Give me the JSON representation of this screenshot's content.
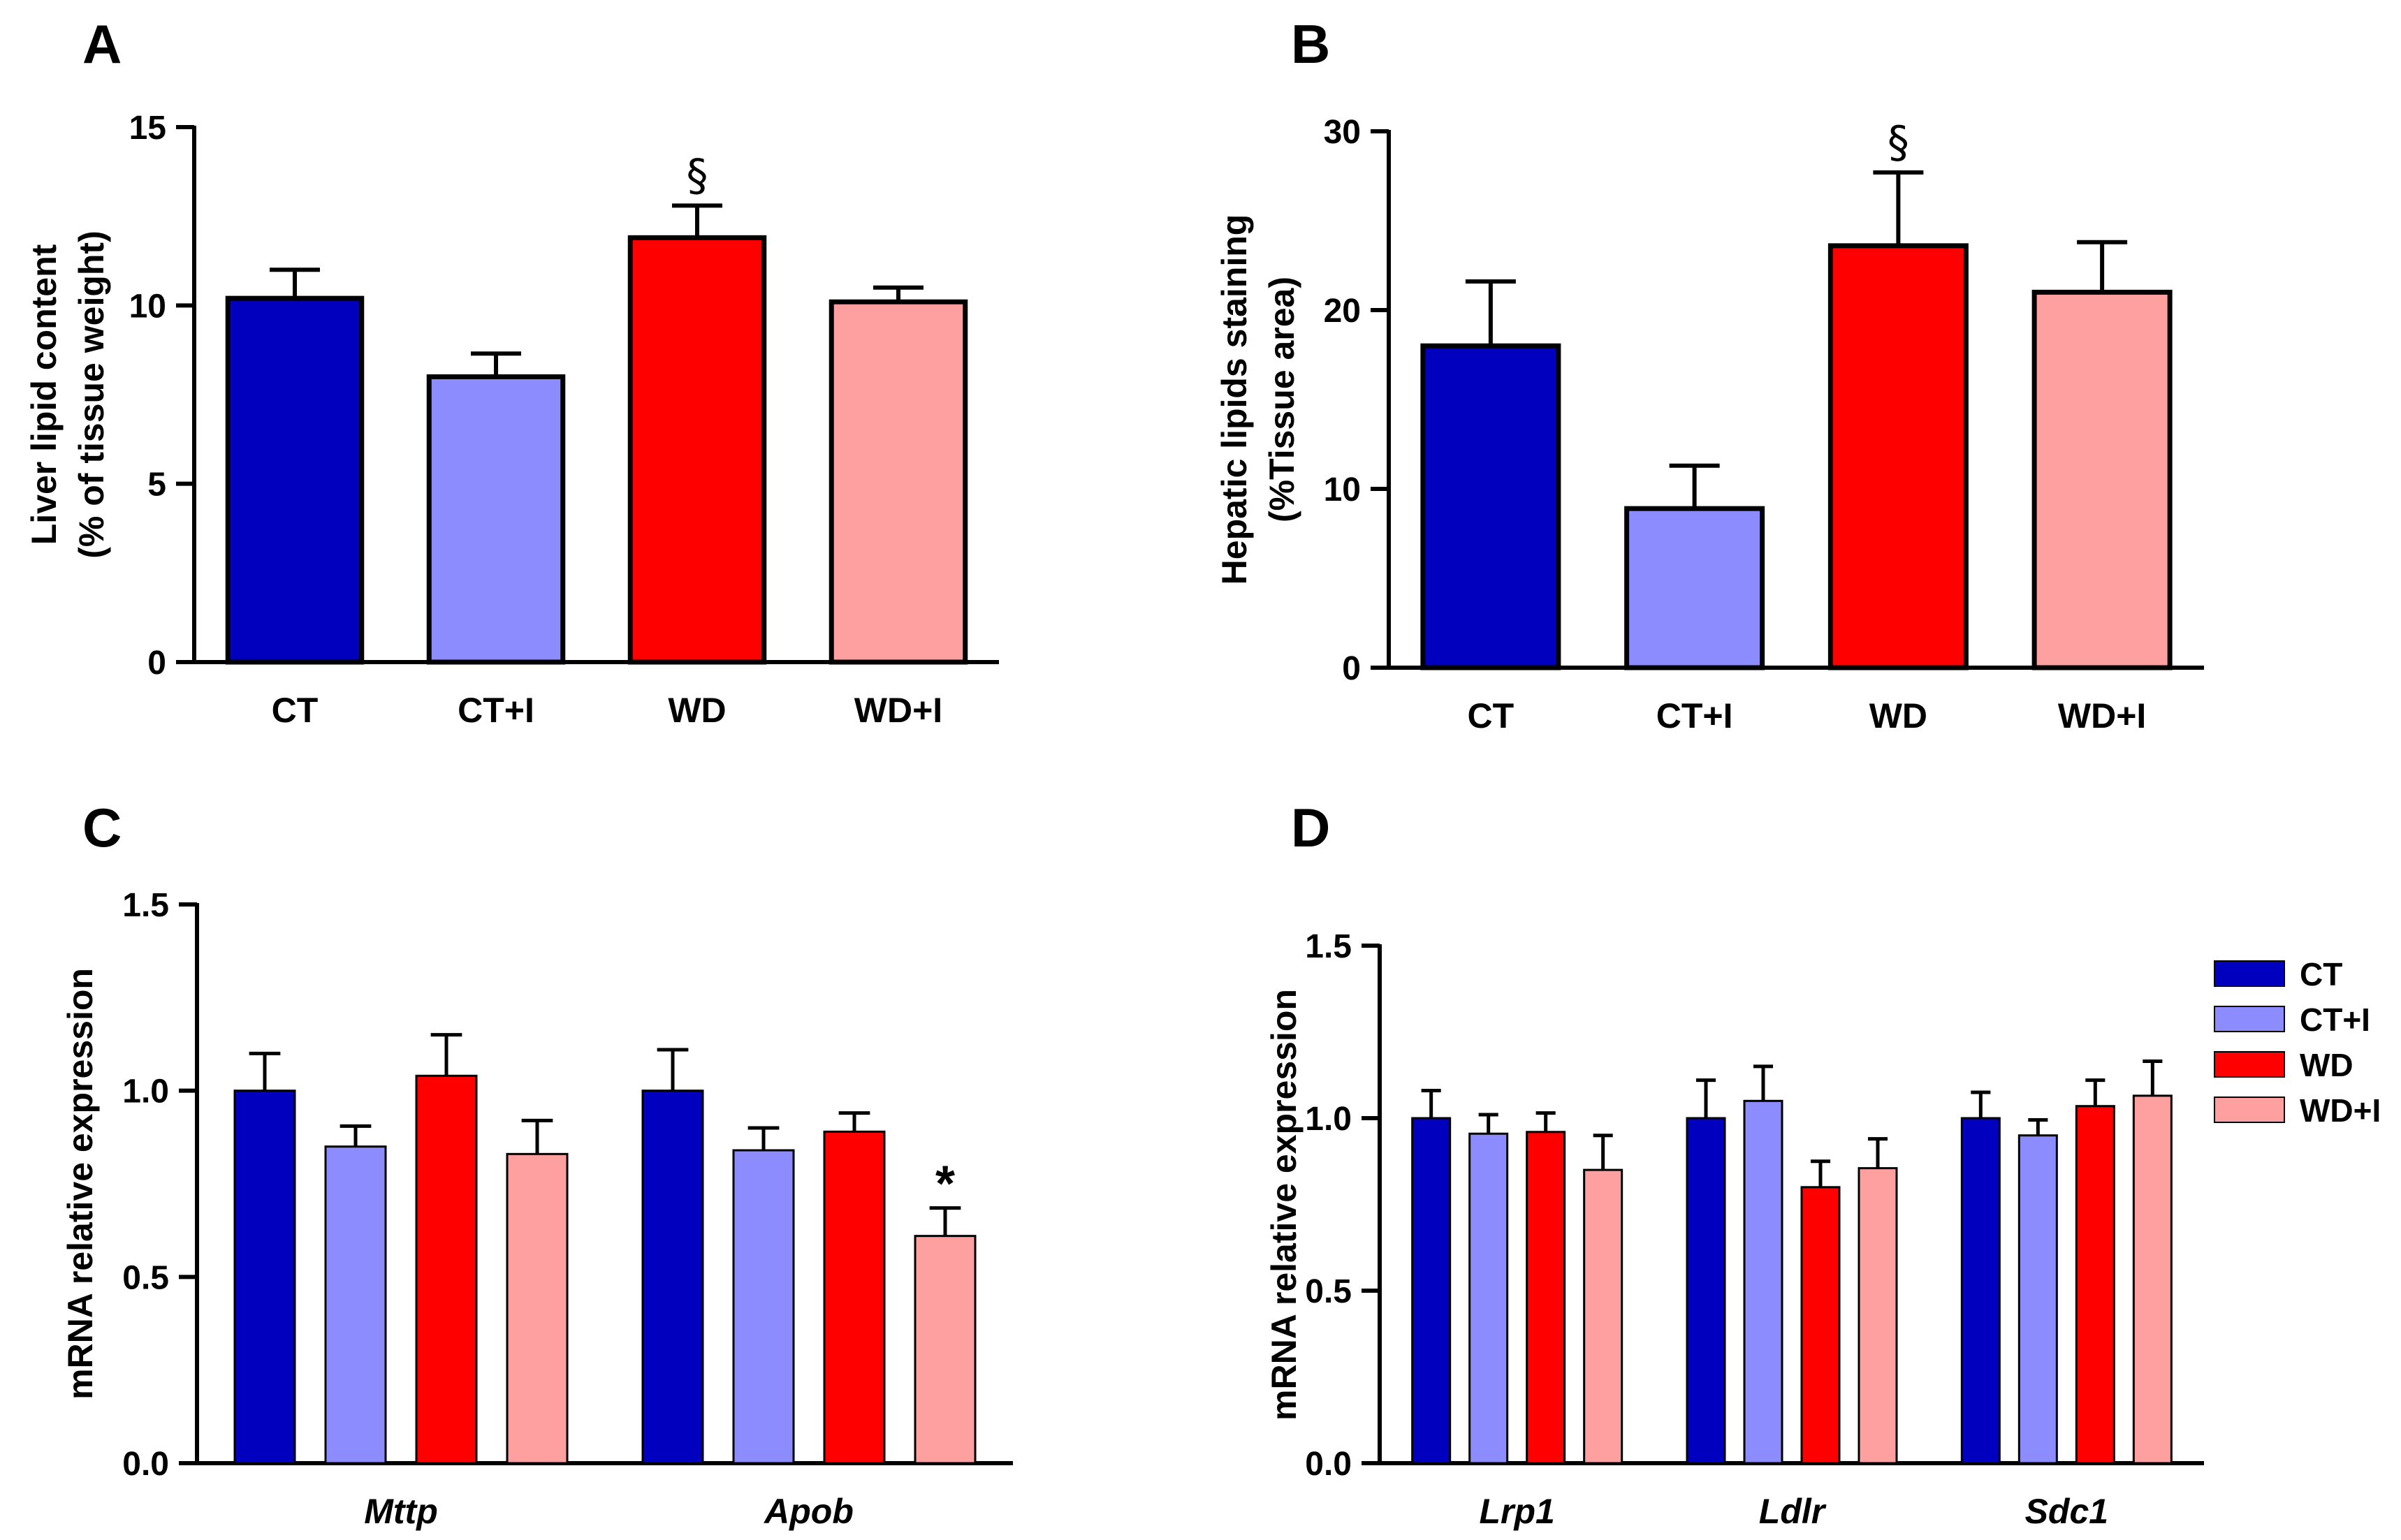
{
  "colors": {
    "CT": "#0000be",
    "CT+I": "#8c8cff",
    "WD": "#ff0000",
    "WD+I": "#ffa0a0"
  },
  "legend": {
    "entries": [
      "CT",
      "CT+I",
      "WD",
      "WD+I"
    ]
  },
  "chart_data": [
    {
      "panel": "A",
      "type": "bar",
      "ylabel_line1": "Liver lipid content",
      "ylabel_line2": "(% of tissue weight)",
      "ylim": [
        0,
        15
      ],
      "yticks": [
        "0",
        "5",
        "10",
        "15"
      ],
      "categories": [
        "CT",
        "CT+I",
        "WD",
        "WD+I"
      ],
      "values": [
        10.2,
        8.0,
        11.9,
        10.1
      ],
      "errors": [
        0.8,
        0.65,
        0.9,
        0.4
      ],
      "annotations": [
        "",
        "",
        "§",
        ""
      ]
    },
    {
      "panel": "B",
      "type": "bar",
      "ylabel_line1": "Hepatic lipids staining",
      "ylabel_line2": "(%Tissue area)",
      "ylim": [
        0,
        30
      ],
      "yticks": [
        "0",
        "10",
        "20",
        "30"
      ],
      "categories": [
        "CT",
        "CT+I",
        "WD",
        "WD+I"
      ],
      "values": [
        18.0,
        8.9,
        23.6,
        21.0
      ],
      "errors": [
        3.6,
        2.4,
        4.1,
        2.8
      ],
      "annotations": [
        "",
        "",
        "§",
        ""
      ]
    },
    {
      "panel": "C",
      "type": "bar",
      "ylabel": "mRNA relative expression",
      "ylim": [
        0,
        1.5
      ],
      "yticks": [
        "0.0",
        "0.5",
        "1.0",
        "1.5"
      ],
      "categories": [
        "Mttp",
        "Apob"
      ],
      "series": [
        {
          "name": "CT",
          "values": [
            1.0,
            1.0
          ],
          "errors": [
            0.1,
            0.11
          ]
        },
        {
          "name": "CT+I",
          "values": [
            0.85,
            0.84
          ],
          "errors": [
            0.055,
            0.06
          ]
        },
        {
          "name": "WD",
          "values": [
            1.04,
            0.89
          ],
          "errors": [
            0.11,
            0.05
          ]
        },
        {
          "name": "WD+I",
          "values": [
            0.83,
            0.61
          ],
          "errors": [
            0.09,
            0.075
          ]
        }
      ],
      "annotations": [
        {
          "category": "Apob",
          "series": "WD+I",
          "text": "*"
        }
      ]
    },
    {
      "panel": "D",
      "type": "bar",
      "ylabel": "mRNA relative expression",
      "ylim": [
        0,
        1.5
      ],
      "yticks": [
        "0.0",
        "0.5",
        "1.0",
        "1.5"
      ],
      "categories": [
        "Lrp1",
        "Ldlr",
        "Sdc1"
      ],
      "series": [
        {
          "name": "CT",
          "values": [
            1.0,
            1.0,
            1.0
          ],
          "errors": [
            0.08,
            0.11,
            0.075
          ]
        },
        {
          "name": "CT+I",
          "values": [
            0.955,
            1.05,
            0.95
          ],
          "errors": [
            0.055,
            0.1,
            0.045
          ]
        },
        {
          "name": "WD",
          "values": [
            0.96,
            0.8,
            1.035
          ],
          "errors": [
            0.055,
            0.075,
            0.075
          ]
        },
        {
          "name": "WD+I",
          "values": [
            0.85,
            0.855,
            1.065
          ],
          "errors": [
            0.1,
            0.085,
            0.1
          ]
        }
      ],
      "annotations": []
    }
  ]
}
